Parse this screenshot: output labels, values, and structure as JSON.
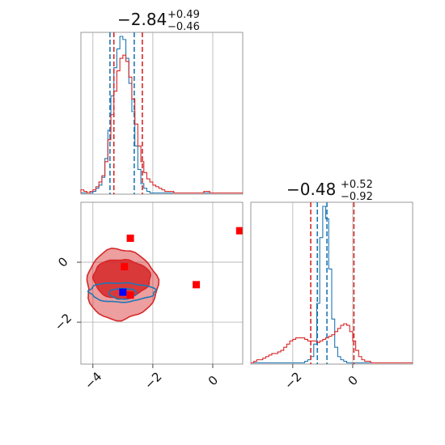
{
  "chart_data": {
    "type": "corner",
    "panels": [
      {
        "id": "hist-param-1",
        "type": "histogram",
        "title": {
          "median": "−2.84",
          "plus": "+0.49",
          "minus": "−0.46"
        },
        "xlim": [
          -4.4,
          1.0
        ],
        "xticks": [
          -4,
          -2,
          0
        ],
        "series": [
          {
            "color": "#1f77b4",
            "bin_start": -4.4,
            "bin_width": 0.1,
            "density": [
              0,
              0,
              0,
              0,
              1,
              3,
              5,
              10,
              22,
              40,
              62,
              80,
              92,
              100,
              98,
              86,
              70,
              52,
              30,
              15,
              6,
              3,
              1,
              0,
              0,
              0,
              0,
              0,
              0,
              0,
              0,
              0,
              0,
              0,
              0,
              0,
              0,
              0,
              0,
              0,
              0,
              0,
              0,
              0,
              0,
              0,
              0,
              0,
              0,
              0,
              0,
              0,
              0,
              0
            ],
            "quantiles": [
              -3.43,
              -2.62
            ]
          },
          {
            "color": "#d62728",
            "bin_start": -4.4,
            "bin_width": 0.1,
            "density": [
              2,
              1,
              0,
              1,
              2,
              4,
              7,
              11,
              20,
              34,
              50,
              65,
              78,
              86,
              88,
              84,
              74,
              60,
              44,
              30,
              20,
              13,
              9,
              7,
              5,
              4,
              3,
              2,
              1,
              1,
              1,
              0,
              0,
              0,
              0,
              0,
              0,
              0,
              0,
              0,
              0,
              1,
              1,
              0,
              0,
              0,
              0,
              0,
              0,
              0,
              0,
              0,
              0,
              0
            ],
            "quantiles": [
              -3.3,
              -2.35
            ]
          }
        ]
      },
      {
        "id": "hist-param-2",
        "type": "histogram",
        "title": {
          "median": "−0.48",
          "plus": "+0.52",
          "minus": "−0.92"
        },
        "xlim": [
          -3.4,
          2.0
        ],
        "xticks": [
          -2,
          0
        ],
        "series": [
          {
            "color": "#1f77b4",
            "bin_start": -3.4,
            "bin_width": 0.1,
            "density": [
              0,
              0,
              0,
              0,
              0,
              0,
              0,
              0,
              0,
              0,
              0,
              0,
              0,
              0,
              0,
              0,
              0,
              0,
              1,
              2,
              4,
              12,
              38,
              80,
              100,
              92,
              60,
              28,
              10,
              4,
              2,
              1,
              0,
              0,
              0,
              0,
              0,
              0,
              0,
              0,
              0,
              0,
              0,
              0,
              0,
              0,
              0,
              0,
              0,
              0,
              0,
              0,
              0,
              0
            ],
            "quantiles": [
              -1.18,
              -0.86
            ]
          },
          {
            "color": "#d62728",
            "bin_start": -3.4,
            "bin_width": 0.1,
            "density": [
              0,
              1,
              2,
              2,
              3,
              4,
              5,
              6,
              6,
              7,
              8,
              10,
              12,
              14,
              15,
              16,
              16,
              16,
              15,
              14,
              14,
              14,
              13,
              14,
              15,
              16,
              17,
              18,
              20,
              22,
              24,
              25,
              24,
              20,
              14,
              8,
              4,
              2,
              1,
              1,
              0,
              0,
              0,
              0,
              0,
              0,
              0,
              0,
              0,
              0,
              0,
              0,
              0,
              0
            ],
            "quantiles": [
              -1.4,
              0.04
            ]
          }
        ]
      },
      {
        "id": "joint-contour",
        "type": "contour",
        "xlim": [
          -4.4,
          1.0
        ],
        "ylim": [
          -3.4,
          2.0
        ],
        "xticks": [
          -4,
          -2,
          0
        ],
        "yticks": [
          -2,
          0
        ],
        "series": [
          {
            "color": "#d62728",
            "levels": [
              {
                "center": [
                  -3.05,
                  -0.75
                ],
                "rx": 1.18,
                "ry": 1.18,
                "fill_opacity": 0.45
              },
              {
                "center": [
                  -3.05,
                  -0.55
                ],
                "rx": 0.95,
                "ry": 0.65,
                "fill_opacity": 0.85
              }
            ]
          },
          {
            "color": "#1f77b4",
            "levels": [
              {
                "center": [
                  -3.05,
                  -1.0
                ],
                "rx": 1.1,
                "ry": 0.32,
                "fill_opacity": 0
              },
              {
                "center": [
                  -3.0,
                  -1.05
                ],
                "rx": 0.45,
                "ry": 0.18,
                "fill_opacity": 0
              }
            ]
          }
        ],
        "markers": [
          {
            "x": -2.75,
            "y": 0.8,
            "color": "#ff0000"
          },
          {
            "x": -2.95,
            "y": -0.15,
            "color": "#ff0000"
          },
          {
            "x": -2.75,
            "y": -1.1,
            "color": "#ff0000"
          },
          {
            "x": -0.55,
            "y": -0.75,
            "color": "#ff0000"
          },
          {
            "x": 0.9,
            "y": 1.05,
            "color": "#ff0000"
          },
          {
            "x": -3.0,
            "y": -1.0,
            "color": "#0000ff"
          }
        ]
      }
    ]
  }
}
